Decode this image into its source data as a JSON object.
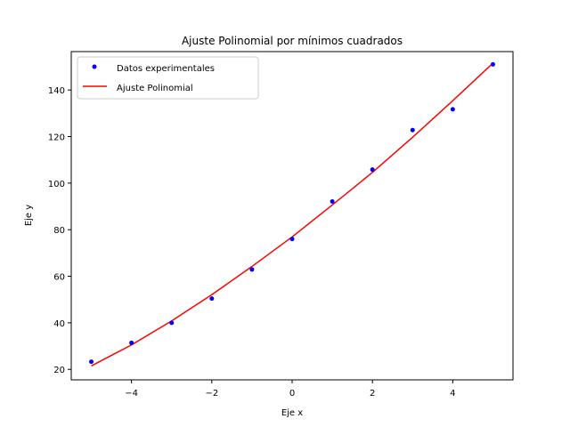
{
  "chart_data": {
    "type": "scatter",
    "title": "Ajuste Polinomial por mínimos cuadrados",
    "xlabel": "Eje x",
    "ylabel": "Eje y",
    "xlim": [
      -5.5,
      5.5
    ],
    "ylim": [
      15.5,
      156.5
    ],
    "xticks": [
      -4,
      -2,
      0,
      2,
      4
    ],
    "xtick_labels": [
      "−4",
      "−2",
      "0",
      "2",
      "4"
    ],
    "yticks": [
      20,
      40,
      60,
      80,
      100,
      120,
      140
    ],
    "ytick_labels": [
      "20",
      "40",
      "60",
      "80",
      "100",
      "120",
      "140"
    ],
    "grid": false,
    "legend_position": "top-left",
    "series": [
      {
        "name": "Datos experimentales",
        "kind": "scatter",
        "color": "#0000ff",
        "x": [
          -5,
          -4,
          -3,
          -2,
          -1,
          0,
          1,
          2,
          3,
          4,
          5
        ],
        "y": [
          23.3,
          31.4,
          40.0,
          50.4,
          62.9,
          76.0,
          92.1,
          105.8,
          122.8,
          131.7,
          151.0
        ]
      },
      {
        "name": "Ajuste Polinomial",
        "kind": "line",
        "color": "#ff0000",
        "x": [
          -5,
          -4,
          -3,
          -2,
          -1,
          0,
          1,
          2,
          3,
          4,
          5
        ],
        "y": [
          21.5,
          30.5,
          40.8,
          52.1,
          64.2,
          76.9,
          90.6,
          104.6,
          119.7,
          135.4,
          151.5
        ]
      }
    ]
  }
}
